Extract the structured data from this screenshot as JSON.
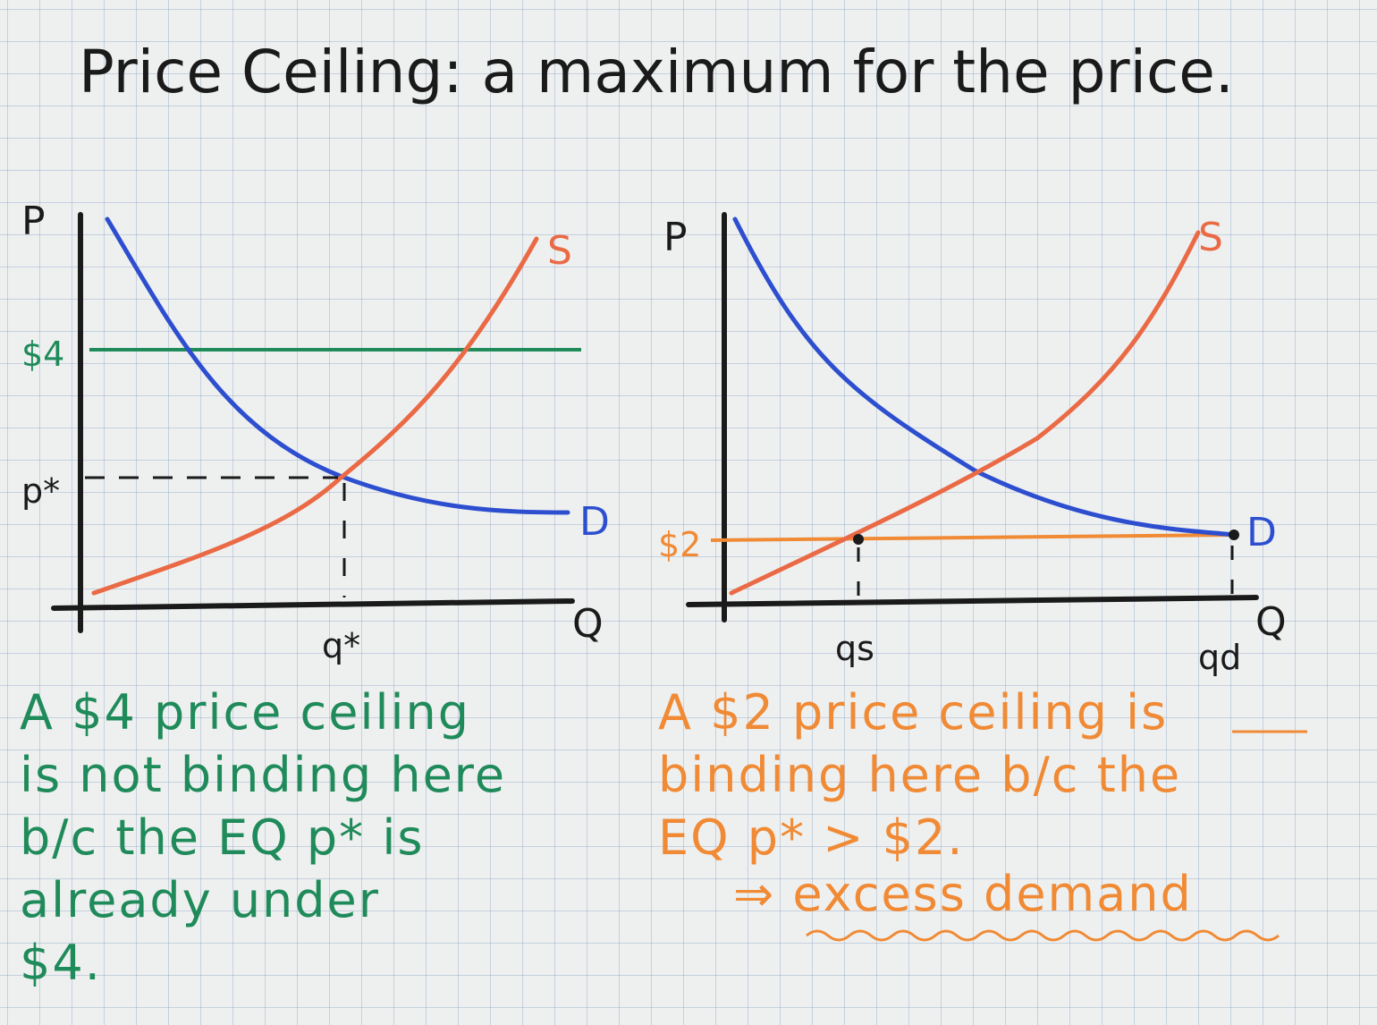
{
  "title": "Price Ceiling: a maximum for the price.",
  "colors": {
    "ink": "#1a1a1a",
    "demand": "#2d4fcf",
    "supply": "#ea6a45",
    "ceiling_green": "#1f8a5a",
    "ceiling_orange": "#f08a35",
    "note_green": "#1f8a5a",
    "note_orange": "#f08a35"
  },
  "left_graph": {
    "y_axis_label": "P",
    "x_axis_label": "Q",
    "supply_label": "S",
    "demand_label": "D",
    "ceiling_label": "$4",
    "eq_price_label": "p*",
    "eq_quantity_label": "q*"
  },
  "right_graph": {
    "y_axis_label": "P",
    "x_axis_label": "Q",
    "supply_label": "S",
    "demand_label": "D",
    "ceiling_label": "$2",
    "qs_label": "qs",
    "qd_label": "qd"
  },
  "left_note": "A $4 price ceiling\nis not binding here\nb/c the EQ p* is\nalready under\n$4.",
  "right_note": "A $2 price ceiling is\nbinding here b/c the\nEQ p* > $2.",
  "right_note_conclusion": "⇒ excess demand"
}
